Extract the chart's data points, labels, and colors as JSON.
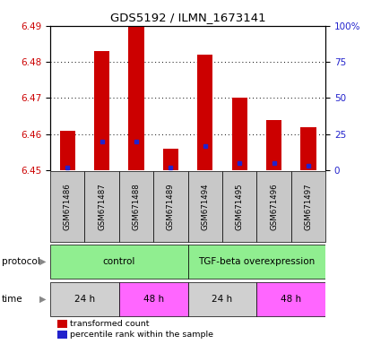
{
  "title": "GDS5192 / ILMN_1673141",
  "samples": [
    "GSM671486",
    "GSM671487",
    "GSM671488",
    "GSM671489",
    "GSM671494",
    "GSM671495",
    "GSM671496",
    "GSM671497"
  ],
  "transformed_counts": [
    6.461,
    6.483,
    6.49,
    6.456,
    6.482,
    6.47,
    6.464,
    6.462
  ],
  "percentile_ranks": [
    2,
    20,
    20,
    2,
    17,
    5,
    5,
    3
  ],
  "ylim_left": [
    6.45,
    6.49
  ],
  "yticks_left": [
    6.45,
    6.46,
    6.47,
    6.48,
    6.49
  ],
  "ylim_right": [
    0,
    100
  ],
  "yticks_right": [
    0,
    25,
    50,
    75,
    100
  ],
  "base_value": 6.45,
  "bar_color": "#CC0000",
  "dot_color": "#2222CC",
  "bar_width": 0.45,
  "legend_red": "transformed count",
  "legend_blue": "percentile rank within the sample",
  "left_axis_color": "#CC0000",
  "right_axis_color": "#2222CC",
  "sample_box_color": "#C8C8C8",
  "protocol_color": "#90EE90",
  "time_24h_color": "#D0D0D0",
  "time_48h_color": "#FF66FF"
}
